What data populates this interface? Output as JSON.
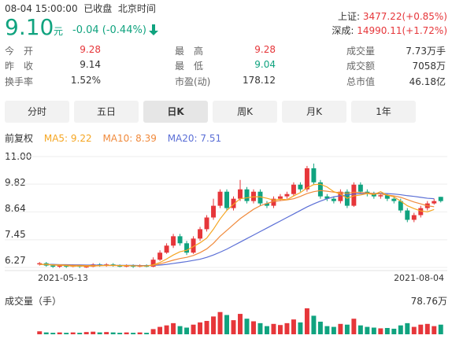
{
  "header": {
    "datetime": "08-04 15:00:00",
    "status": "已收盘",
    "timezone": "北京时间",
    "price": "9.10",
    "unit": "元",
    "change": "-0.04 (-0.44%)",
    "arrow_icon": "down-arrow-icon"
  },
  "indices": [
    {
      "name": "上证:",
      "value": "3477.22(+0.85%)"
    },
    {
      "name": "深成:",
      "value": "14990.11(+1.72%)"
    }
  ],
  "stats": [
    [
      {
        "label": "今　开",
        "value": "9.28",
        "color": "red"
      },
      {
        "label": "最　高",
        "value": "9.28",
        "color": "red"
      },
      {
        "label": "成交量",
        "value": "7.73万手",
        "color": "black"
      }
    ],
    [
      {
        "label": "昨　收",
        "value": "9.14",
        "color": "black"
      },
      {
        "label": "最　低",
        "value": "9.04",
        "color": "green"
      },
      {
        "label": "成交额",
        "value": "7058万",
        "color": "black"
      }
    ],
    [
      {
        "label": "换手率",
        "value": "1.52%",
        "color": "black"
      },
      {
        "label": "市盈(动)",
        "value": "178.12",
        "color": "black"
      },
      {
        "label": "总市值",
        "value": "46.18亿",
        "color": "black"
      }
    ]
  ],
  "tabs": [
    "分时",
    "五日",
    "日K",
    "周K",
    "月K",
    "1年"
  ],
  "active_tab": "日K",
  "ma": {
    "adjust": "前复权",
    "ma5": "MA5: 9.22",
    "ma10": "MA10: 8.39",
    "ma20": "MA20: 7.51"
  },
  "colors": {
    "up": "#e6363a",
    "down": "#10a37f",
    "ma5": "#f5a623",
    "ma10": "#f08a3c",
    "ma20": "#5b6fd6"
  },
  "chart_data": {
    "type": "candlestick",
    "y_ticks": [
      "11.00",
      "9.82",
      "8.64",
      "7.45",
      "6.27"
    ],
    "ylim": [
      6.27,
      11.0
    ],
    "x_labels": [
      "2021-05-13",
      "2021-08-04"
    ],
    "candles": [
      [
        6.4,
        6.45,
        6.35,
        6.5
      ],
      [
        6.45,
        6.35,
        6.3,
        6.5
      ],
      [
        6.35,
        6.3,
        6.25,
        6.4
      ],
      [
        6.3,
        6.35,
        6.25,
        6.4
      ],
      [
        6.35,
        6.3,
        6.25,
        6.4
      ],
      [
        6.3,
        6.35,
        6.28,
        6.4
      ],
      [
        6.35,
        6.3,
        6.25,
        6.38
      ],
      [
        6.3,
        6.3,
        6.25,
        6.35
      ],
      [
        6.3,
        6.4,
        6.28,
        6.45
      ],
      [
        6.4,
        6.35,
        6.3,
        6.45
      ],
      [
        6.35,
        6.4,
        6.3,
        6.45
      ],
      [
        6.4,
        6.35,
        6.3,
        6.45
      ],
      [
        6.35,
        6.3,
        6.28,
        6.4
      ],
      [
        6.3,
        6.35,
        6.28,
        6.4
      ],
      [
        6.35,
        6.3,
        6.25,
        6.4
      ],
      [
        6.3,
        6.35,
        6.28,
        6.4
      ],
      [
        6.35,
        6.3,
        6.28,
        6.4
      ],
      [
        6.3,
        6.6,
        6.28,
        6.7
      ],
      [
        6.6,
        6.9,
        6.55,
        7.0
      ],
      [
        6.9,
        7.2,
        6.85,
        7.3
      ],
      [
        7.2,
        7.6,
        7.1,
        7.7
      ],
      [
        7.6,
        7.3,
        7.2,
        7.7
      ],
      [
        7.3,
        6.9,
        6.8,
        7.4
      ],
      [
        6.9,
        7.5,
        6.85,
        7.6
      ],
      [
        7.5,
        7.9,
        7.4,
        8.0
      ],
      [
        7.9,
        8.4,
        7.8,
        8.5
      ],
      [
        8.4,
        8.9,
        8.3,
        9.2
      ],
      [
        8.9,
        9.5,
        8.8,
        9.6
      ],
      [
        9.5,
        8.8,
        8.7,
        9.6
      ],
      [
        8.8,
        9.2,
        8.7,
        9.3
      ],
      [
        9.2,
        9.6,
        9.1,
        10.0
      ],
      [
        9.6,
        9.1,
        9.0,
        9.7
      ],
      [
        9.1,
        9.5,
        9.0,
        9.6
      ],
      [
        9.5,
        9.0,
        8.9,
        9.6
      ],
      [
        9.0,
        8.9,
        8.8,
        9.1
      ],
      [
        8.9,
        9.2,
        8.8,
        9.3
      ],
      [
        9.2,
        9.3,
        9.1,
        9.4
      ],
      [
        9.3,
        9.4,
        9.2,
        9.5
      ],
      [
        9.4,
        9.8,
        9.3,
        9.9
      ],
      [
        9.8,
        9.6,
        9.5,
        9.9
      ],
      [
        9.6,
        10.5,
        9.5,
        10.6
      ],
      [
        10.5,
        9.9,
        9.8,
        10.7
      ],
      [
        9.9,
        9.3,
        9.2,
        10.0
      ],
      [
        9.3,
        9.2,
        9.1,
        9.4
      ],
      [
        9.2,
        9.1,
        9.0,
        9.3
      ],
      [
        9.1,
        9.5,
        9.0,
        9.6
      ],
      [
        9.5,
        8.9,
        8.8,
        9.6
      ],
      [
        8.9,
        9.8,
        8.85,
        9.9
      ],
      [
        9.8,
        9.5,
        9.4,
        9.9
      ],
      [
        9.5,
        9.4,
        9.3,
        9.6
      ],
      [
        9.4,
        9.3,
        9.2,
        9.5
      ],
      [
        9.3,
        9.35,
        9.2,
        9.4
      ],
      [
        9.35,
        9.2,
        9.1,
        9.4
      ],
      [
        9.2,
        9.1,
        9.0,
        9.3
      ],
      [
        9.1,
        8.7,
        8.6,
        9.2
      ],
      [
        8.7,
        8.3,
        8.2,
        8.8
      ],
      [
        8.3,
        8.5,
        8.2,
        8.6
      ],
      [
        8.5,
        8.8,
        8.4,
        8.9
      ],
      [
        8.8,
        9.0,
        8.7,
        9.1
      ],
      [
        9.0,
        9.1,
        8.95,
        9.2
      ],
      [
        9.28,
        9.1,
        9.04,
        9.28
      ]
    ],
    "ma5": [
      6.4,
      6.4,
      6.37,
      6.36,
      6.35,
      6.32,
      6.33,
      6.32,
      6.33,
      6.34,
      6.36,
      6.36,
      6.35,
      6.35,
      6.34,
      6.33,
      6.33,
      6.38,
      6.48,
      6.63,
      6.8,
      6.94,
      7.0,
      7.16,
      7.32,
      7.52,
      7.9,
      8.34,
      8.7,
      8.96,
      9.2,
      9.24,
      9.28,
      9.28,
      9.22,
      9.14,
      9.18,
      9.16,
      9.32,
      9.46,
      9.66,
      9.8,
      9.82,
      9.7,
      9.5,
      9.4,
      9.22,
      9.32,
      9.36,
      9.42,
      9.38,
      9.5,
      9.35,
      9.28,
      9.1,
      8.9,
      8.78,
      8.68,
      8.64,
      8.74,
      9.22
    ],
    "ma10": [
      6.4,
      6.4,
      6.38,
      6.38,
      6.37,
      6.36,
      6.36,
      6.35,
      6.35,
      6.35,
      6.35,
      6.35,
      6.35,
      6.34,
      6.34,
      6.34,
      6.34,
      6.36,
      6.42,
      6.5,
      6.58,
      6.65,
      6.7,
      6.78,
      6.9,
      7.06,
      7.3,
      7.6,
      7.85,
      8.1,
      8.35,
      8.55,
      8.75,
      8.9,
      9.0,
      9.08,
      9.12,
      9.15,
      9.2,
      9.3,
      9.42,
      9.5,
      9.55,
      9.52,
      9.48,
      9.46,
      9.43,
      9.48,
      9.46,
      9.45,
      9.42,
      9.4,
      9.36,
      9.32,
      9.26,
      9.16,
      9.06,
      8.98,
      8.9,
      8.86,
      8.39
    ],
    "ma20": [
      6.4,
      6.4,
      6.4,
      6.39,
      6.39,
      6.38,
      6.38,
      6.37,
      6.37,
      6.37,
      6.36,
      6.36,
      6.36,
      6.36,
      6.36,
      6.35,
      6.35,
      6.36,
      6.37,
      6.4,
      6.44,
      6.48,
      6.52,
      6.57,
      6.62,
      6.7,
      6.8,
      6.92,
      7.05,
      7.2,
      7.35,
      7.5,
      7.65,
      7.8,
      7.95,
      8.1,
      8.25,
      8.4,
      8.55,
      8.7,
      8.85,
      8.98,
      9.1,
      9.2,
      9.28,
      9.33,
      9.36,
      9.4,
      9.42,
      9.43,
      9.43,
      9.43,
      9.42,
      9.4,
      9.37,
      9.33,
      9.3,
      9.26,
      9.22,
      9.2,
      7.51
    ]
  },
  "volume": {
    "label": "成交量（手）",
    "max_label": "78.76万",
    "values": [
      8,
      5,
      4,
      5,
      4,
      5,
      4,
      6,
      7,
      5,
      6,
      5,
      4,
      5,
      4,
      5,
      4,
      14,
      20,
      24,
      30,
      22,
      18,
      26,
      32,
      36,
      48,
      60,
      52,
      38,
      55,
      42,
      35,
      30,
      22,
      28,
      25,
      30,
      40,
      32,
      70,
      50,
      34,
      22,
      20,
      28,
      26,
      42,
      24,
      20,
      18,
      16,
      17,
      15,
      24,
      30,
      20,
      26,
      28,
      22,
      26
    ],
    "up": [
      1,
      0,
      0,
      1,
      0,
      1,
      0,
      1,
      1,
      0,
      1,
      0,
      0,
      1,
      0,
      1,
      0,
      1,
      1,
      1,
      1,
      0,
      0,
      1,
      1,
      1,
      1,
      1,
      0,
      1,
      1,
      0,
      1,
      0,
      0,
      1,
      1,
      1,
      1,
      0,
      1,
      0,
      0,
      0,
      0,
      1,
      0,
      1,
      0,
      0,
      0,
      1,
      0,
      0,
      0,
      0,
      1,
      1,
      1,
      1,
      0
    ]
  }
}
